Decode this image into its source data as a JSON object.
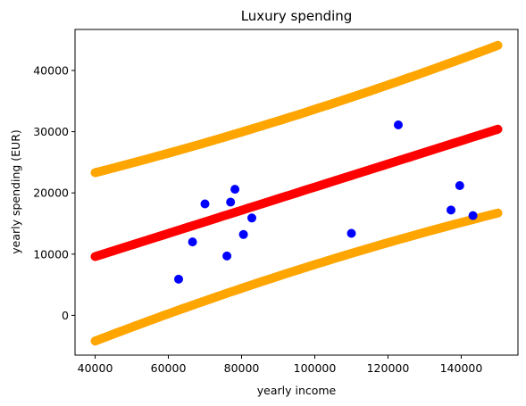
{
  "chart_data": {
    "type": "scatter",
    "title": "Luxury spending",
    "xlabel": "yearly income",
    "ylabel": "yearly spending (EUR)",
    "xlim": [
      34500,
      155500
    ],
    "ylim": [
      -6500,
      46700
    ],
    "xticks": [
      40000,
      60000,
      80000,
      100000,
      120000,
      140000
    ],
    "yticks": [
      0,
      10000,
      20000,
      30000,
      40000
    ],
    "grid": false,
    "legend": "none",
    "points": {
      "color": "#0000ff",
      "x": [
        62800,
        66600,
        70000,
        76000,
        77000,
        78200,
        80500,
        82800,
        110000,
        122800,
        137200,
        139600,
        143200
      ],
      "y": [
        5900,
        12000,
        18200,
        9700,
        18500,
        20600,
        13200,
        15900,
        13400,
        31100,
        17200,
        21200,
        16300
      ]
    },
    "lines": [
      {
        "role": "fit",
        "color": "#ff0000",
        "x": [
          40000,
          150000
        ],
        "y": [
          9600,
          30400
        ]
      },
      {
        "role": "upper-band",
        "color": "#ffa500",
        "x": [
          40000,
          150000
        ],
        "y": [
          23300,
          44100
        ],
        "curvature": 1000
      },
      {
        "role": "lower-band",
        "color": "#ffa500",
        "x": [
          40000,
          150000
        ],
        "y": [
          -4200,
          16700
        ],
        "curvature": -1100
      }
    ]
  }
}
